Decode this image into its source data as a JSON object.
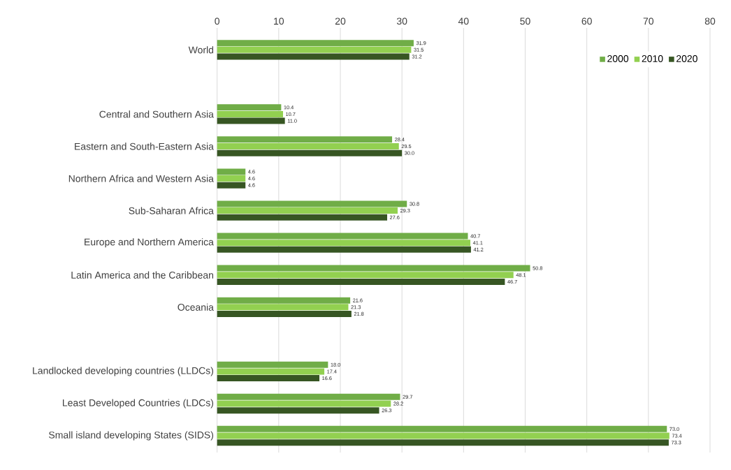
{
  "chart_data": {
    "type": "bar",
    "orientation": "horizontal",
    "categories": [
      "World",
      null,
      "Central and Southern Asia",
      "Eastern and South-Eastern Asia",
      "Northern Africa and Western Asia",
      "Sub-Saharan Africa",
      "Europe and Northern America",
      "Latin America and the Caribbean",
      "Oceania",
      null,
      "Landlocked developing countries (LLDCs)",
      "Least Developed Countries (LDCs)",
      "Small island developing States (SIDS)"
    ],
    "series": [
      {
        "name": "2000",
        "color": "#70ad47",
        "values": [
          31.9,
          null,
          10.4,
          28.4,
          4.6,
          30.8,
          40.7,
          50.8,
          21.6,
          null,
          18.0,
          29.7,
          73.0
        ],
        "value_labels": [
          "31.9",
          null,
          "10.4",
          "28.4",
          "4.6",
          "30.8",
          "40.7",
          "50.8",
          "21.6",
          null,
          "18.0",
          "29.7",
          "73.0"
        ]
      },
      {
        "name": "2010",
        "color": "#92d050",
        "values": [
          31.5,
          null,
          10.7,
          29.5,
          4.6,
          29.3,
          41.1,
          48.1,
          21.3,
          null,
          17.4,
          28.2,
          73.4
        ],
        "value_labels": [
          "31.5",
          null,
          "10.7",
          "29.5",
          "4.6",
          "29.3",
          "41.1",
          "48.1",
          "21.3",
          null,
          "17.4",
          "28.2",
          "73.4"
        ]
      },
      {
        "name": "2020",
        "color": "#375623",
        "values": [
          31.2,
          null,
          11.0,
          30.0,
          4.6,
          27.6,
          41.2,
          46.7,
          21.8,
          null,
          16.6,
          26.3,
          73.3
        ],
        "value_labels": [
          "31.2",
          null,
          "11.0",
          "30.0",
          "4.6",
          "27.6",
          "41.2",
          "46.7",
          "21.8",
          null,
          "16.6",
          "26.3",
          "73.3"
        ]
      }
    ],
    "xlim": [
      0,
      80
    ],
    "xticks": [
      0,
      10,
      20,
      30,
      40,
      50,
      60,
      70,
      80
    ],
    "grid": "x",
    "legend": "top right"
  }
}
